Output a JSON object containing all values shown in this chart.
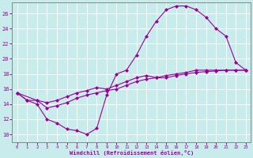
{
  "xlabel": "Windchill (Refroidissement éolien,°C)",
  "xlim": [
    -0.5,
    23.5
  ],
  "ylim": [
    9.0,
    27.5
  ],
  "xticks": [
    0,
    1,
    2,
    3,
    4,
    5,
    6,
    7,
    8,
    9,
    10,
    11,
    12,
    13,
    14,
    15,
    16,
    17,
    18,
    19,
    20,
    21,
    22,
    23
  ],
  "yticks": [
    10,
    12,
    14,
    16,
    18,
    20,
    22,
    24,
    26
  ],
  "bg_color": "#c8ecec",
  "grid_color": "#c0c0c0",
  "line_color": "#990099",
  "curve1_x": [
    0,
    1,
    2,
    3,
    4,
    5,
    6,
    7,
    8,
    9,
    10,
    11,
    12,
    13,
    14,
    15,
    16,
    17,
    18,
    19,
    20,
    21,
    22,
    23
  ],
  "curve1_y": [
    15.5,
    14.5,
    14.0,
    12.0,
    11.5,
    10.7,
    10.5,
    10.0,
    10.8,
    15.2,
    18.0,
    18.5,
    20.5,
    23.0,
    25.0,
    26.5,
    27.0,
    27.0,
    26.5,
    25.5,
    24.0,
    23.0,
    19.5,
    18.5
  ],
  "curve2_x": [
    0,
    1,
    2,
    3,
    4,
    5,
    6,
    7,
    8,
    9,
    10,
    11,
    12,
    13,
    14,
    15,
    16,
    17,
    18,
    19,
    20,
    21,
    22,
    23
  ],
  "curve2_y": [
    15.5,
    14.5,
    14.5,
    14.2,
    14.5,
    15.0,
    15.5,
    15.8,
    16.2,
    16.0,
    16.5,
    17.0,
    17.5,
    17.8,
    17.5,
    17.8,
    18.0,
    18.2,
    18.5,
    18.5,
    18.5,
    18.5,
    18.5,
    18.5
  ],
  "curve3_x": [
    0,
    2,
    3,
    4,
    5,
    6,
    7,
    8,
    9,
    10,
    11,
    12,
    13,
    14,
    15,
    16,
    17,
    18,
    19,
    20,
    21,
    22,
    23
  ],
  "curve3_y": [
    15.5,
    14.5,
    13.5,
    13.8,
    14.2,
    14.8,
    15.2,
    15.5,
    15.8,
    16.0,
    16.5,
    17.0,
    17.3,
    17.5,
    17.5,
    17.8,
    18.0,
    18.2,
    18.3,
    18.4,
    18.5,
    18.5,
    18.5
  ]
}
